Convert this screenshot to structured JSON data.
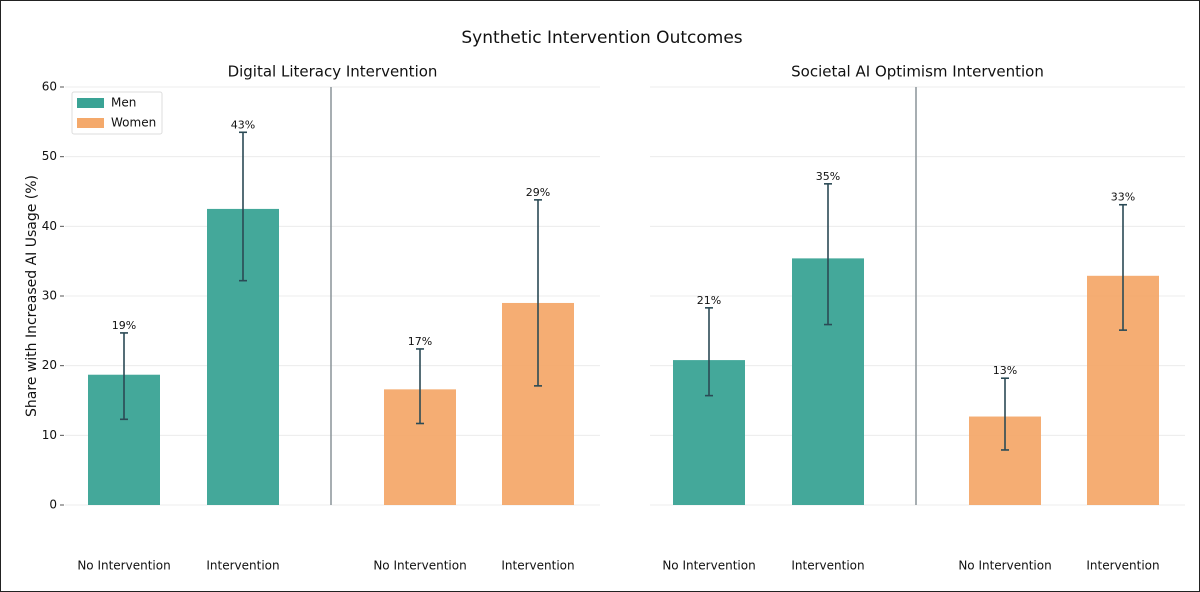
{
  "title": "Synthetic Intervention Outcomes",
  "chart_data": [
    {
      "type": "bar",
      "title": "Digital Literacy Intervention",
      "ylabel": "Share with Increased AI Usage (%)",
      "categories": [
        "No Intervention",
        "Intervention",
        "No Intervention",
        "Intervention"
      ],
      "series": [
        {
          "name": "Men",
          "color": "#3aa395",
          "values": [
            18.7,
            42.5,
            null,
            null
          ],
          "value_labels": [
            "19%",
            "43%",
            null,
            null
          ],
          "lower": [
            12.3,
            32.2,
            null,
            null
          ],
          "upper": [
            24.7,
            53.5,
            null,
            null
          ]
        },
        {
          "name": "Women",
          "color": "#f4a96b",
          "values": [
            null,
            null,
            16.6,
            29.0
          ],
          "value_labels": [
            null,
            null,
            "17%",
            "29%"
          ],
          "lower": [
            null,
            null,
            11.7,
            17.1
          ],
          "upper": [
            null,
            null,
            22.4,
            43.8
          ]
        }
      ],
      "ylim": [
        0,
        60
      ],
      "yticks": [
        0,
        10,
        20,
        30,
        40,
        50,
        60
      ],
      "grid": true,
      "legend": "upper left"
    },
    {
      "type": "bar",
      "title": "Societal AI Optimism Intervention",
      "categories": [
        "No Intervention",
        "Intervention",
        "No Intervention",
        "Intervention"
      ],
      "series": [
        {
          "name": "Men",
          "color": "#3aa395",
          "values": [
            20.8,
            35.4,
            null,
            null
          ],
          "value_labels": [
            "21%",
            "35%",
            null,
            null
          ],
          "lower": [
            15.7,
            25.9,
            null,
            null
          ],
          "upper": [
            28.3,
            46.1,
            null,
            null
          ]
        },
        {
          "name": "Women",
          "color": "#f4a96b",
          "values": [
            null,
            null,
            12.7,
            32.9
          ],
          "value_labels": [
            null,
            null,
            "13%",
            "33%"
          ],
          "lower": [
            null,
            null,
            7.9,
            25.1
          ],
          "upper": [
            null,
            null,
            18.2,
            43.1
          ]
        }
      ],
      "ylim": [
        0,
        60
      ],
      "grid": true
    }
  ]
}
